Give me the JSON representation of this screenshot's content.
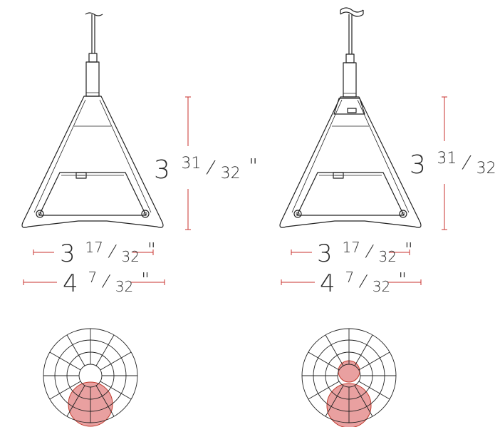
{
  "left_view": {
    "height_dim": {
      "whole": "3",
      "numerator": "31",
      "denominator": "32",
      "unit": "\""
    },
    "inner_width_dim": {
      "whole": "3",
      "numerator": "17",
      "denominator": "32",
      "unit": "\""
    },
    "outer_width_dim": {
      "whole": "4",
      "numerator": "7",
      "denominator": "32",
      "unit": "\""
    },
    "distribution": "direct"
  },
  "right_view": {
    "height_dim": {
      "whole": "3",
      "numerator": "31",
      "denominator": "32",
      "unit": "\""
    },
    "inner_width_dim": {
      "whole": "3",
      "numerator": "17",
      "denominator": "32",
      "unit": "\""
    },
    "outer_width_dim": {
      "whole": "4",
      "numerator": "7",
      "denominator": "32",
      "unit": "\""
    },
    "distribution": "direct-indirect"
  },
  "colors": {
    "dimension_line": "#c9302c",
    "photometric_fill": "#e58f8f",
    "photometric_stroke": "#c0392b",
    "drawing_stroke": "#222222"
  }
}
